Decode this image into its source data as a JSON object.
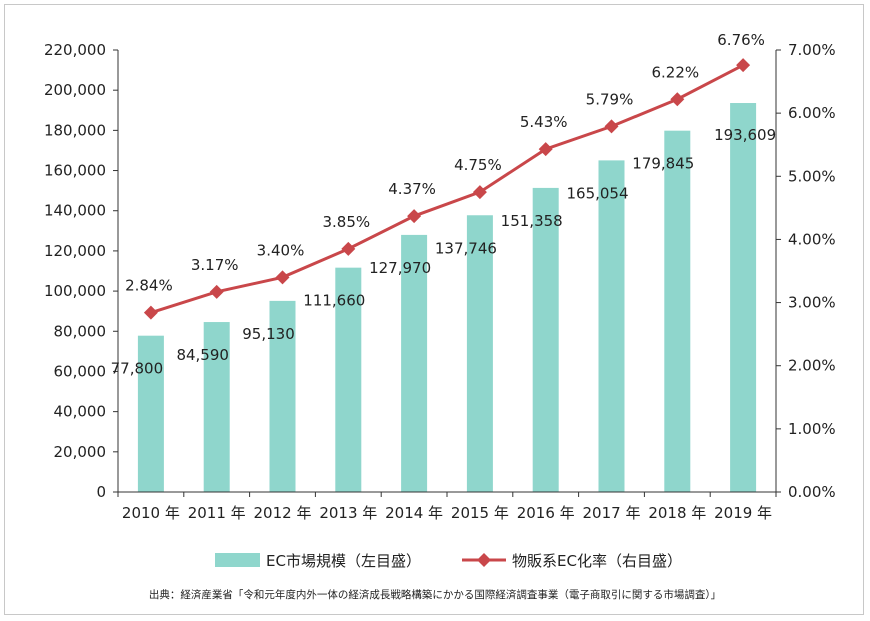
{
  "chart_data": {
    "type": "bar",
    "categories": [
      "2010 年",
      "2011 年",
      "2012 年",
      "2013 年",
      "2014 年",
      "2015 年",
      "2016 年",
      "2017 年",
      "2018 年",
      "2019 年"
    ],
    "series": [
      {
        "name": "EC市場規模（左目盛）",
        "type": "bar",
        "axis": "left",
        "color": "#8fd6cc",
        "values": [
          77800,
          84590,
          95130,
          111660,
          127970,
          137746,
          151358,
          165054,
          179845,
          193609
        ],
        "labels": [
          "77,800",
          "84,590",
          "95,130",
          "111,660",
          "127,970",
          "137,746",
          "151,358",
          "165,054",
          "179,845",
          "193,609"
        ]
      },
      {
        "name": "物販系EC化率（右目盛）",
        "type": "line",
        "axis": "right",
        "color": "#c9474a",
        "values": [
          2.84,
          3.17,
          3.4,
          3.85,
          4.37,
          4.75,
          5.43,
          5.79,
          6.22,
          6.76
        ],
        "labels": [
          "2.84%",
          "3.17%",
          "3.40%",
          "3.85%",
          "4.37%",
          "4.75%",
          "5.43%",
          "5.79%",
          "6.22%",
          "6.76%"
        ]
      }
    ],
    "ylim_left": [
      0,
      220000
    ],
    "ylim_right": [
      0,
      7
    ],
    "yticks_left": [
      "0",
      "20,000",
      "40,000",
      "60,000",
      "80,000",
      "100,000",
      "120,000",
      "140,000",
      "160,000",
      "180,000",
      "200,000",
      "220,000"
    ],
    "yticks_right": [
      "0.00%",
      "1.00%",
      "2.00%",
      "3.00%",
      "4.00%",
      "5.00%",
      "6.00%",
      "7.00%"
    ],
    "highlight": {
      "bar_label_color": "#1a1f6e",
      "line_label_color": "#e0201c"
    },
    "legend_position": "bottom",
    "grid": false
  },
  "source": "出典：経済産業省「令和元年度内外一体の経済成長戦略構築にかかる国際経済調査事業（電子商取引に関する市場調査）」"
}
